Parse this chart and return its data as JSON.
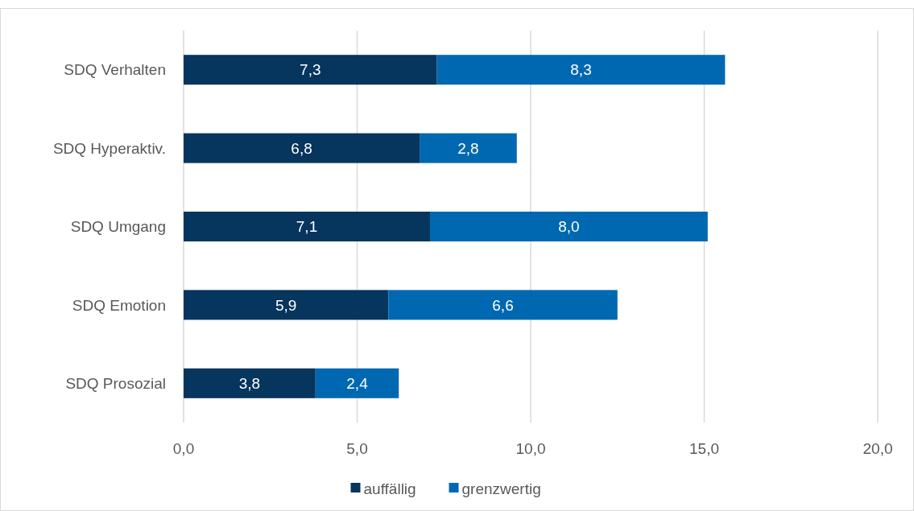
{
  "chart_data": {
    "type": "bar",
    "orientation": "horizontal",
    "stacked": true,
    "categories": [
      "SDQ Verhalten",
      "SDQ Hyperaktiv.",
      "SDQ Umgang",
      "SDQ Emotion",
      "SDQ Prosozial"
    ],
    "series": [
      {
        "name": "auffällig",
        "color": "#06355e",
        "values": [
          7.3,
          6.8,
          7.1,
          5.9,
          3.8
        ],
        "value_labels": [
          "7,3",
          "6,8",
          "7,1",
          "5,9",
          "3,8"
        ]
      },
      {
        "name": "grenzwertig",
        "color": "#0068b0",
        "values": [
          8.3,
          2.8,
          8.0,
          6.6,
          2.4
        ],
        "value_labels": [
          "8,3",
          "2,8",
          "8,0",
          "6,6",
          "2,4"
        ]
      }
    ],
    "xlim": [
      0,
      20
    ],
    "xticks": [
      {
        "value": 0,
        "label": "0,0"
      },
      {
        "value": 5,
        "label": "5,0"
      },
      {
        "value": 10,
        "label": "10,0"
      },
      {
        "value": 15,
        "label": "15,0"
      },
      {
        "value": 20,
        "label": "20,0"
      }
    ],
    "grid": "x",
    "legend": "bottom"
  }
}
